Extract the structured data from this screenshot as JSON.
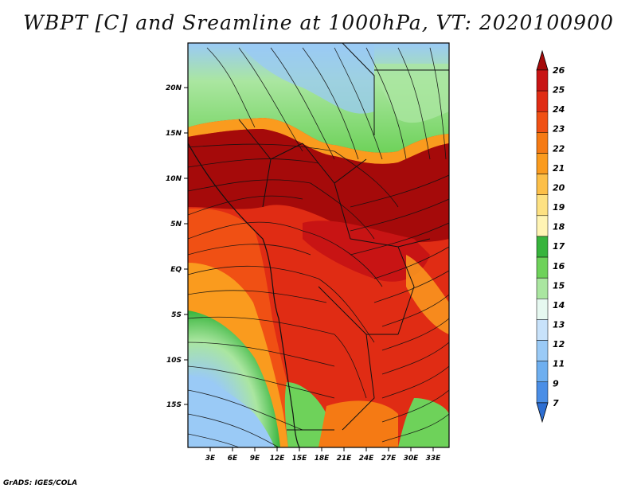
{
  "title": "WBPT [C] and Sreamline at 1000hPa, VT: 2020100900",
  "footer": "GrADS: IGES/COLA",
  "lat_labels": [
    "20N",
    "15N",
    "10N",
    "5N",
    "EQ",
    "5S",
    "10S",
    "15S"
  ],
  "lon_labels": [
    "3E",
    "6E",
    "9E",
    "12E",
    "15E",
    "18E",
    "21E",
    "24E",
    "27E",
    "30E",
    "33E"
  ],
  "colorbar": {
    "labels": [
      "26",
      "25",
      "24",
      "23",
      "22",
      "21",
      "20",
      "19",
      "18",
      "17",
      "16",
      "15",
      "14",
      "13",
      "12",
      "11",
      "9",
      "7"
    ],
    "colors": [
      "#a50a0a",
      "#c81414",
      "#e02c14",
      "#f05014",
      "#f57a14",
      "#fa9b1e",
      "#fcbf48",
      "#fde182",
      "#fff4b4",
      "#37b43c",
      "#6ed25a",
      "#aae6a0",
      "#e6f8f0",
      "#c8e2fa",
      "#9acaf6",
      "#6eaff0",
      "#4a8ee6",
      "#2d6ed2"
    ]
  },
  "map_regions": [
    {
      "name": "northern cool band",
      "value": "16-17"
    },
    {
      "name": "sahel warm band",
      "value": "24-25"
    },
    {
      "name": "central basin",
      "value": "24"
    },
    {
      "name": "atlantic cool zone",
      "value": "12-16"
    }
  ]
}
